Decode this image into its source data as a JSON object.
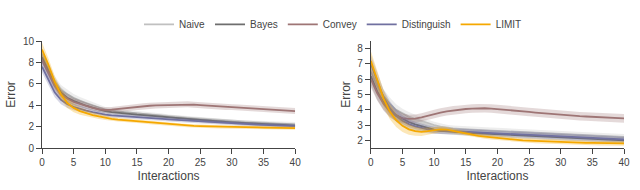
{
  "chart_data": [
    {
      "type": "line",
      "xlabel": "Interactions",
      "ylabel": "Error",
      "x": [
        0,
        1,
        2,
        3,
        4,
        5,
        6,
        7,
        8,
        9,
        10,
        11,
        12,
        13,
        14,
        15,
        16,
        17,
        18,
        19,
        20,
        21,
        22,
        23,
        24,
        25,
        26,
        27,
        28,
        29,
        30,
        31,
        32,
        33,
        34,
        35,
        36,
        37,
        38,
        39,
        40
      ],
      "xlim": [
        0,
        40
      ],
      "xticks": [
        0,
        5,
        10,
        15,
        20,
        25,
        30,
        35,
        40
      ],
      "ylim": [
        0,
        10
      ],
      "yticks": [
        0,
        2,
        4,
        6,
        8,
        10
      ],
      "grid": false,
      "legend": "top",
      "series": [
        {
          "name": "Naive",
          "color": "#c0c0c0",
          "values": [
            8.8,
            7.5,
            6.2,
            5.4,
            5.0,
            4.65,
            4.4,
            4.2,
            4.0,
            3.8,
            3.6,
            3.5,
            3.4,
            3.35,
            3.3,
            3.25,
            3.2,
            3.15,
            3.1,
            3.0,
            2.9,
            2.85,
            2.8,
            2.75,
            2.7,
            2.65,
            2.6,
            2.55,
            2.5,
            2.45,
            2.4,
            2.38,
            2.36,
            2.34,
            2.32,
            2.3,
            2.28,
            2.26,
            2.24,
            2.22,
            2.2
          ],
          "std": [
            0.55,
            0.55,
            0.52,
            0.48,
            0.44,
            0.4,
            0.36,
            0.32,
            0.28,
            0.26,
            0.24,
            0.22,
            0.22,
            0.22,
            0.22,
            0.22,
            0.22,
            0.22,
            0.22,
            0.22,
            0.22,
            0.22,
            0.22,
            0.22,
            0.22,
            0.22,
            0.22,
            0.22,
            0.22,
            0.22,
            0.22,
            0.22,
            0.22,
            0.22,
            0.22,
            0.22,
            0.22,
            0.22,
            0.22,
            0.22,
            0.22
          ]
        },
        {
          "name": "Bayes",
          "color": "#6e6e6e",
          "values": [
            8.5,
            7.2,
            6.0,
            5.2,
            4.7,
            4.4,
            4.15,
            3.95,
            3.78,
            3.6,
            3.45,
            3.35,
            3.28,
            3.22,
            3.18,
            3.12,
            3.08,
            3.02,
            2.98,
            2.92,
            2.88,
            2.82,
            2.78,
            2.72,
            2.68,
            2.62,
            2.58,
            2.52,
            2.48,
            2.44,
            2.4,
            2.36,
            2.32,
            2.28,
            2.25,
            2.22,
            2.2,
            2.18,
            2.16,
            2.14,
            2.1
          ],
          "std": [
            0.6,
            0.55,
            0.5,
            0.46,
            0.42,
            0.38,
            0.34,
            0.3,
            0.27,
            0.24,
            0.22,
            0.21,
            0.2,
            0.2,
            0.2,
            0.2,
            0.2,
            0.2,
            0.2,
            0.2,
            0.2,
            0.2,
            0.2,
            0.2,
            0.2,
            0.2,
            0.2,
            0.2,
            0.2,
            0.2,
            0.2,
            0.2,
            0.2,
            0.2,
            0.2,
            0.2,
            0.2,
            0.2,
            0.2,
            0.2,
            0.2
          ]
        },
        {
          "name": "Convey",
          "color": "#9e7575",
          "values": [
            8.2,
            7.0,
            5.8,
            5.0,
            4.6,
            4.3,
            4.1,
            3.9,
            3.75,
            3.6,
            3.55,
            3.58,
            3.65,
            3.72,
            3.78,
            3.85,
            3.9,
            3.95,
            3.98,
            4.0,
            4.02,
            4.05,
            4.08,
            4.08,
            4.05,
            4.0,
            3.96,
            3.92,
            3.88,
            3.84,
            3.82,
            3.78,
            3.74,
            3.7,
            3.66,
            3.62,
            3.6,
            3.56,
            3.52,
            3.48,
            3.45
          ],
          "std": [
            0.55,
            0.5,
            0.45,
            0.4,
            0.36,
            0.32,
            0.3,
            0.28,
            0.26,
            0.25,
            0.25,
            0.26,
            0.27,
            0.28,
            0.28,
            0.28,
            0.28,
            0.28,
            0.28,
            0.28,
            0.28,
            0.28,
            0.28,
            0.28,
            0.28,
            0.28,
            0.28,
            0.28,
            0.28,
            0.28,
            0.28,
            0.28,
            0.28,
            0.28,
            0.28,
            0.28,
            0.28,
            0.28,
            0.28,
            0.28,
            0.28
          ]
        },
        {
          "name": "Distinguish",
          "color": "#7070a0",
          "values": [
            7.6,
            6.4,
            5.2,
            4.5,
            4.1,
            3.85,
            3.65,
            3.5,
            3.35,
            3.22,
            3.12,
            3.05,
            3.0,
            2.96,
            2.92,
            2.88,
            2.84,
            2.8,
            2.76,
            2.72,
            2.68,
            2.64,
            2.6,
            2.56,
            2.52,
            2.48,
            2.44,
            2.4,
            2.36,
            2.32,
            2.28,
            2.25,
            2.22,
            2.2,
            2.18,
            2.16,
            2.14,
            2.12,
            2.1,
            2.08,
            2.05
          ],
          "std": [
            0.55,
            0.5,
            0.45,
            0.4,
            0.36,
            0.32,
            0.3,
            0.27,
            0.25,
            0.23,
            0.21,
            0.2,
            0.2,
            0.2,
            0.2,
            0.2,
            0.2,
            0.2,
            0.2,
            0.2,
            0.2,
            0.2,
            0.2,
            0.2,
            0.2,
            0.2,
            0.2,
            0.2,
            0.2,
            0.2,
            0.2,
            0.2,
            0.2,
            0.2,
            0.2,
            0.2,
            0.2,
            0.2,
            0.2,
            0.2,
            0.2
          ]
        },
        {
          "name": "LIMIT",
          "color": "#f5a800",
          "values": [
            9.2,
            7.8,
            6.2,
            5.0,
            4.2,
            3.75,
            3.45,
            3.25,
            3.08,
            2.95,
            2.82,
            2.72,
            2.65,
            2.6,
            2.56,
            2.5,
            2.45,
            2.38,
            2.32,
            2.26,
            2.22,
            2.18,
            2.14,
            2.1,
            2.06,
            2.04,
            2.02,
            2.0,
            1.98,
            1.97,
            1.96,
            1.95,
            1.94,
            1.93,
            1.92,
            1.91,
            1.9,
            1.89,
            1.88,
            1.87,
            1.86
          ],
          "std": [
            0.65,
            0.6,
            0.55,
            0.5,
            0.45,
            0.4,
            0.35,
            0.3,
            0.27,
            0.24,
            0.21,
            0.19,
            0.17,
            0.16,
            0.15,
            0.15,
            0.15,
            0.15,
            0.15,
            0.15,
            0.15,
            0.15,
            0.15,
            0.15,
            0.15,
            0.15,
            0.15,
            0.15,
            0.15,
            0.15,
            0.15,
            0.15,
            0.15,
            0.15,
            0.15,
            0.15,
            0.15,
            0.15,
            0.15,
            0.15,
            0.15
          ]
        }
      ]
    },
    {
      "type": "line",
      "xlabel": "Interactions",
      "ylabel": "Error",
      "x": [
        0,
        1,
        2,
        3,
        4,
        5,
        6,
        7,
        8,
        9,
        10,
        11,
        12,
        13,
        14,
        15,
        16,
        17,
        18,
        19,
        20,
        21,
        22,
        23,
        24,
        25,
        26,
        27,
        28,
        29,
        30,
        31,
        32,
        33,
        34,
        35,
        36,
        37,
        38,
        39,
        40
      ],
      "xlim": [
        0,
        40
      ],
      "xticks": [
        0,
        5,
        10,
        15,
        20,
        25,
        30,
        35,
        40
      ],
      "ylim": [
        1.5,
        8.5
      ],
      "yticks": [
        2,
        3,
        4,
        5,
        6,
        7,
        8
      ],
      "grid": false,
      "legend": "top",
      "series": [
        {
          "name": "Naive",
          "color": "#c0c0c0",
          "values": [
            6.5,
            5.6,
            4.9,
            4.4,
            4.0,
            3.75,
            3.55,
            3.4,
            3.25,
            3.12,
            3.0,
            2.9,
            2.82,
            2.78,
            2.75,
            2.72,
            2.7,
            2.68,
            2.66,
            2.64,
            2.62,
            2.6,
            2.58,
            2.56,
            2.54,
            2.52,
            2.5,
            2.48,
            2.46,
            2.44,
            2.42,
            2.4,
            2.38,
            2.36,
            2.34,
            2.32,
            2.3,
            2.28,
            2.26,
            2.24,
            2.22
          ],
          "std": [
            0.55,
            0.5,
            0.45,
            0.4,
            0.36,
            0.32,
            0.3,
            0.27,
            0.25,
            0.23,
            0.21,
            0.2,
            0.2,
            0.2,
            0.2,
            0.2,
            0.2,
            0.2,
            0.2,
            0.2,
            0.2,
            0.2,
            0.2,
            0.2,
            0.2,
            0.2,
            0.2,
            0.2,
            0.2,
            0.2,
            0.2,
            0.2,
            0.2,
            0.2,
            0.2,
            0.2,
            0.2,
            0.2,
            0.2,
            0.2,
            0.2
          ]
        },
        {
          "name": "Bayes",
          "color": "#6e6e6e",
          "values": [
            6.2,
            5.2,
            4.5,
            4.0,
            3.65,
            3.4,
            3.2,
            3.05,
            2.92,
            2.8,
            2.7,
            2.62,
            2.58,
            2.55,
            2.52,
            2.5,
            2.48,
            2.46,
            2.44,
            2.42,
            2.4,
            2.38,
            2.36,
            2.34,
            2.32,
            2.3,
            2.28,
            2.26,
            2.24,
            2.22,
            2.2,
            2.18,
            2.16,
            2.14,
            2.12,
            2.1,
            2.08,
            2.06,
            2.04,
            2.02,
            2.0
          ],
          "std": [
            0.6,
            0.55,
            0.5,
            0.45,
            0.4,
            0.36,
            0.32,
            0.3,
            0.27,
            0.25,
            0.23,
            0.21,
            0.2,
            0.2,
            0.2,
            0.2,
            0.2,
            0.2,
            0.2,
            0.2,
            0.2,
            0.2,
            0.2,
            0.2,
            0.2,
            0.2,
            0.2,
            0.2,
            0.2,
            0.2,
            0.2,
            0.2,
            0.2,
            0.2,
            0.2,
            0.2,
            0.2,
            0.2,
            0.2,
            0.2,
            0.2
          ]
        },
        {
          "name": "Convey",
          "color": "#9e7575",
          "values": [
            6.0,
            5.1,
            4.4,
            3.9,
            3.6,
            3.45,
            3.4,
            3.42,
            3.5,
            3.62,
            3.72,
            3.82,
            3.9,
            3.96,
            4.0,
            4.05,
            4.08,
            4.1,
            4.1,
            4.08,
            4.05,
            4.02,
            3.98,
            3.94,
            3.9,
            3.86,
            3.82,
            3.78,
            3.74,
            3.7,
            3.66,
            3.62,
            3.6,
            3.58,
            3.56,
            3.54,
            3.52,
            3.5,
            3.48,
            3.46,
            3.44
          ],
          "std": [
            0.55,
            0.5,
            0.45,
            0.4,
            0.35,
            0.3,
            0.28,
            0.27,
            0.27,
            0.28,
            0.28,
            0.28,
            0.28,
            0.28,
            0.28,
            0.28,
            0.28,
            0.28,
            0.28,
            0.28,
            0.28,
            0.28,
            0.28,
            0.28,
            0.28,
            0.28,
            0.28,
            0.28,
            0.28,
            0.28,
            0.28,
            0.28,
            0.28,
            0.28,
            0.28,
            0.28,
            0.28,
            0.28,
            0.28,
            0.28,
            0.28
          ]
        },
        {
          "name": "Distinguish",
          "color": "#7070a0",
          "values": [
            7.0,
            5.85,
            4.82,
            4.12,
            3.6,
            3.28,
            3.06,
            2.92,
            2.8,
            2.72,
            2.66,
            2.64,
            2.62,
            2.6,
            2.58,
            2.56,
            2.54,
            2.52,
            2.5,
            2.48,
            2.46,
            2.44,
            2.42,
            2.4,
            2.38,
            2.36,
            2.34,
            2.32,
            2.3,
            2.28,
            2.26,
            2.24,
            2.22,
            2.2,
            2.18,
            2.16,
            2.14,
            2.12,
            2.1,
            2.08,
            2.06
          ],
          "std": [
            0.6,
            0.55,
            0.5,
            0.45,
            0.4,
            0.36,
            0.32,
            0.3,
            0.27,
            0.25,
            0.23,
            0.21,
            0.2,
            0.2,
            0.2,
            0.2,
            0.2,
            0.2,
            0.2,
            0.2,
            0.2,
            0.2,
            0.2,
            0.2,
            0.2,
            0.2,
            0.2,
            0.2,
            0.2,
            0.2,
            0.2,
            0.2,
            0.2,
            0.2,
            0.2,
            0.2,
            0.2,
            0.2,
            0.2,
            0.2,
            0.2
          ]
        },
        {
          "name": "LIMIT",
          "color": "#f5a800",
          "values": [
            7.2,
            5.95,
            4.75,
            3.88,
            3.32,
            2.95,
            2.72,
            2.6,
            2.55,
            2.6,
            2.68,
            2.72,
            2.7,
            2.62,
            2.52,
            2.42,
            2.36,
            2.3,
            2.25,
            2.2,
            2.16,
            2.12,
            2.08,
            2.04,
            2.0,
            1.98,
            1.96,
            1.94,
            1.92,
            1.9,
            1.88,
            1.87,
            1.86,
            1.85,
            1.84,
            1.83,
            1.82,
            1.81,
            1.8,
            1.8,
            1.8
          ],
          "std": [
            0.65,
            0.6,
            0.55,
            0.5,
            0.45,
            0.4,
            0.35,
            0.3,
            0.27,
            0.24,
            0.21,
            0.19,
            0.17,
            0.16,
            0.15,
            0.15,
            0.15,
            0.15,
            0.15,
            0.15,
            0.15,
            0.15,
            0.15,
            0.15,
            0.15,
            0.15,
            0.15,
            0.15,
            0.15,
            0.15,
            0.15,
            0.15,
            0.15,
            0.15,
            0.15,
            0.15,
            0.15,
            0.15,
            0.15,
            0.15,
            0.15
          ]
        }
      ]
    }
  ]
}
